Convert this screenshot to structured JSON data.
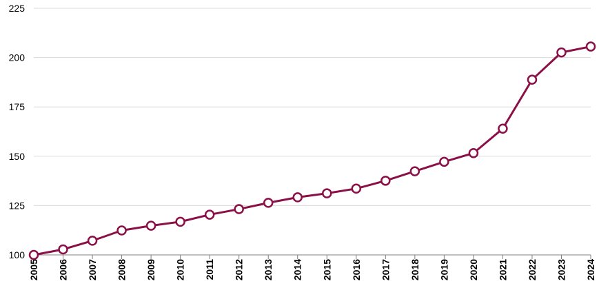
{
  "colors": {
    "series": "#8b1048",
    "grid": "#d9d9d9",
    "axis": "#7f7f7f"
  },
  "chart_data": {
    "type": "line",
    "title": "",
    "xlabel": "",
    "ylabel": "",
    "ylim": [
      100,
      225
    ],
    "yticks": [
      100,
      125,
      150,
      175,
      200,
      225
    ],
    "grid": true,
    "legend": "none",
    "x": [
      "2005",
      "2006",
      "2007",
      "2008",
      "2009",
      "2010",
      "2011",
      "2012",
      "2013",
      "2014",
      "2015",
      "2016",
      "2017",
      "2018",
      "2019",
      "2020",
      "2021",
      "2022",
      "2023",
      "2024"
    ],
    "series": [
      {
        "values": [
          100,
          102.8,
          107.2,
          112.4,
          114.8,
          116.8,
          120.4,
          123.2,
          126.4,
          129.2,
          131.2,
          133.6,
          137.6,
          142.4,
          147.2,
          151.6,
          164,
          188.8,
          202.6,
          205.6
        ]
      }
    ]
  }
}
